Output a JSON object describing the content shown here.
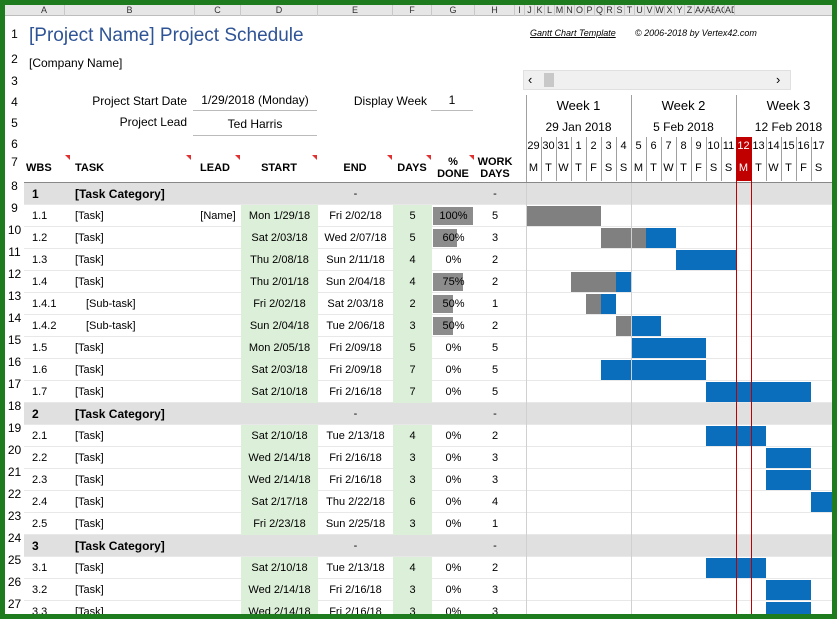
{
  "column_headers": [
    "A",
    "B",
    "C",
    "D",
    "E",
    "F",
    "G",
    "H",
    "I",
    "J",
    "K",
    "L",
    "M",
    "N",
    "O",
    "P",
    "Q",
    "R",
    "S",
    "T",
    "U",
    "V",
    "W",
    "X",
    "Y",
    "Z",
    "AA",
    "AB",
    "AC",
    "AD"
  ],
  "row_numbers": [
    "1",
    "2",
    "3",
    "4",
    "5",
    "6",
    "7",
    "8",
    "9",
    "10",
    "11",
    "12",
    "13",
    "14",
    "15",
    "16",
    "17",
    "18",
    "19",
    "20",
    "21",
    "22",
    "23",
    "24",
    "25",
    "26",
    "27"
  ],
  "title": "[Project Name] Project Schedule",
  "company": "[Company Name]",
  "template_note": "Gantt Chart Template",
  "copyright": "© 2006-2018 by Vertex42.com",
  "start_label": "Project Start Date",
  "start_value": "1/29/2018 (Monday)",
  "display_week_label": "Display Week",
  "display_week_value": "1",
  "lead_label": "Project Lead",
  "lead_value": "Ted Harris",
  "headers": {
    "wbs": "WBS",
    "task": "TASK",
    "lead": "LEAD",
    "start": "START",
    "end": "END",
    "days": "DAYS",
    "pct_line1": "%",
    "pct_line2": "DONE",
    "work_line1": "WORK",
    "work_line2": "DAYS"
  },
  "weeks": [
    {
      "label": "Week 1",
      "date": "29 Jan 2018"
    },
    {
      "label": "Week 2",
      "date": "5 Feb 2018"
    },
    {
      "label": "Week 3",
      "date": "12 Feb 2018"
    }
  ],
  "day_numbers": [
    "29",
    "30",
    "31",
    "1",
    "2",
    "3",
    "4",
    "5",
    "6",
    "7",
    "8",
    "9",
    "10",
    "11",
    "12",
    "13",
    "14",
    "15",
    "16",
    "17"
  ],
  "day_letters": [
    "M",
    "T",
    "W",
    "T",
    "F",
    "S",
    "S",
    "M",
    "T",
    "W",
    "T",
    "F",
    "S",
    "S",
    "M",
    "T",
    "W",
    "T",
    "F",
    "S"
  ],
  "today_index": 14,
  "rows": [
    {
      "wbs": "1",
      "task": "[Task Category]",
      "category": true,
      "lead": "",
      "start": "",
      "end": "-",
      "days": "",
      "pct": "",
      "work": "-"
    },
    {
      "wbs": "1.1",
      "task": "[Task]",
      "lead": "[Name]",
      "start": "Mon 1/29/18",
      "end": "Fri 2/02/18",
      "days": "5",
      "pct": "100%",
      "pct_value": 1.0,
      "work": "5",
      "bar_start": 0,
      "bar_len": 5,
      "done_len": 5
    },
    {
      "wbs": "1.2",
      "task": "[Task]",
      "lead": "",
      "start": "Sat 2/03/18",
      "end": "Wed 2/07/18",
      "days": "5",
      "pct": "60%",
      "pct_value": 0.6,
      "work": "3",
      "bar_start": 5,
      "bar_len": 5,
      "done_len": 3
    },
    {
      "wbs": "1.3",
      "task": "[Task]",
      "lead": "",
      "start": "Thu 2/08/18",
      "end": "Sun 2/11/18",
      "days": "4",
      "pct": "0%",
      "pct_value": 0,
      "work": "2",
      "bar_start": 10,
      "bar_len": 4,
      "done_len": 0
    },
    {
      "wbs": "1.4",
      "task": "[Task]",
      "lead": "",
      "start": "Thu 2/01/18",
      "end": "Sun 2/04/18",
      "days": "4",
      "pct": "75%",
      "pct_value": 0.75,
      "work": "2",
      "bar_start": 3,
      "bar_len": 4,
      "done_len": 3
    },
    {
      "wbs": "1.4.1",
      "task": "[Sub-task]",
      "sub": true,
      "lead": "",
      "start": "Fri 2/02/18",
      "end": "Sat 2/03/18",
      "days": "2",
      "pct": "50%",
      "pct_value": 0.5,
      "work": "1",
      "bar_start": 4,
      "bar_len": 2,
      "done_len": 1
    },
    {
      "wbs": "1.4.2",
      "task": "[Sub-task]",
      "sub": true,
      "lead": "",
      "start": "Sun 2/04/18",
      "end": "Tue 2/06/18",
      "days": "3",
      "pct": "50%",
      "pct_value": 0.5,
      "work": "2",
      "bar_start": 6,
      "bar_len": 3,
      "done_len": 1
    },
    {
      "wbs": "1.5",
      "task": "[Task]",
      "lead": "",
      "start": "Mon 2/05/18",
      "end": "Fri 2/09/18",
      "days": "5",
      "pct": "0%",
      "pct_value": 0,
      "work": "5",
      "bar_start": 7,
      "bar_len": 5,
      "done_len": 0
    },
    {
      "wbs": "1.6",
      "task": "[Task]",
      "lead": "",
      "start": "Sat 2/03/18",
      "end": "Fri 2/09/18",
      "days": "7",
      "pct": "0%",
      "pct_value": 0,
      "work": "5",
      "bar_start": 5,
      "bar_len": 7,
      "done_len": 0
    },
    {
      "wbs": "1.7",
      "task": "[Task]",
      "lead": "",
      "start": "Sat 2/10/18",
      "end": "Fri 2/16/18",
      "days": "7",
      "pct": "0%",
      "pct_value": 0,
      "work": "5",
      "bar_start": 12,
      "bar_len": 7,
      "done_len": 0
    },
    {
      "wbs": "2",
      "task": "[Task Category]",
      "category": true,
      "lead": "",
      "start": "",
      "end": "-",
      "days": "",
      "pct": "",
      "work": "-"
    },
    {
      "wbs": "2.1",
      "task": "[Task]",
      "lead": "",
      "start": "Sat 2/10/18",
      "end": "Tue 2/13/18",
      "days": "4",
      "pct": "0%",
      "pct_value": 0,
      "work": "2",
      "bar_start": 12,
      "bar_len": 4,
      "done_len": 0
    },
    {
      "wbs": "2.2",
      "task": "[Task]",
      "lead": "",
      "start": "Wed 2/14/18",
      "end": "Fri 2/16/18",
      "days": "3",
      "pct": "0%",
      "pct_value": 0,
      "work": "3",
      "bar_start": 16,
      "bar_len": 3,
      "done_len": 0
    },
    {
      "wbs": "2.3",
      "task": "[Task]",
      "lead": "",
      "start": "Wed 2/14/18",
      "end": "Fri 2/16/18",
      "days": "3",
      "pct": "0%",
      "pct_value": 0,
      "work": "3",
      "bar_start": 16,
      "bar_len": 3,
      "done_len": 0
    },
    {
      "wbs": "2.4",
      "task": "[Task]",
      "lead": "",
      "start": "Sat 2/17/18",
      "end": "Thu 2/22/18",
      "days": "6",
      "pct": "0%",
      "pct_value": 0,
      "work": "4",
      "bar_start": 19,
      "bar_len": 6,
      "done_len": 0
    },
    {
      "wbs": "2.5",
      "task": "[Task]",
      "lead": "",
      "start": "Fri 2/23/18",
      "end": "Sun 2/25/18",
      "days": "3",
      "pct": "0%",
      "pct_value": 0,
      "work": "1",
      "bar_start": 25,
      "bar_len": 3,
      "done_len": 0
    },
    {
      "wbs": "3",
      "task": "[Task Category]",
      "category": true,
      "lead": "",
      "start": "",
      "end": "-",
      "days": "",
      "pct": "",
      "work": "-"
    },
    {
      "wbs": "3.1",
      "task": "[Task]",
      "lead": "",
      "start": "Sat 2/10/18",
      "end": "Tue 2/13/18",
      "days": "4",
      "pct": "0%",
      "pct_value": 0,
      "work": "2",
      "bar_start": 12,
      "bar_len": 4,
      "done_len": 0
    },
    {
      "wbs": "3.2",
      "task": "[Task]",
      "lead": "",
      "start": "Wed 2/14/18",
      "end": "Fri 2/16/18",
      "days": "3",
      "pct": "0%",
      "pct_value": 0,
      "work": "3",
      "bar_start": 16,
      "bar_len": 3,
      "done_len": 0
    },
    {
      "wbs": "3.3",
      "task": "[Task]",
      "lead": "",
      "start": "Wed 2/14/18",
      "end": "Fri 2/16/18",
      "days": "3",
      "pct": "0%",
      "pct_value": 0,
      "work": "3",
      "bar_start": 16,
      "bar_len": 3,
      "done_len": 0
    }
  ],
  "colors": {
    "frame": "#1e7b1e",
    "title": "#2f5496",
    "done_bar": "#808080",
    "todo_bar": "#0a6ebd",
    "today": "#c00000",
    "date_fill": "#dcefd8",
    "category_fill": "#e0e0e0"
  }
}
